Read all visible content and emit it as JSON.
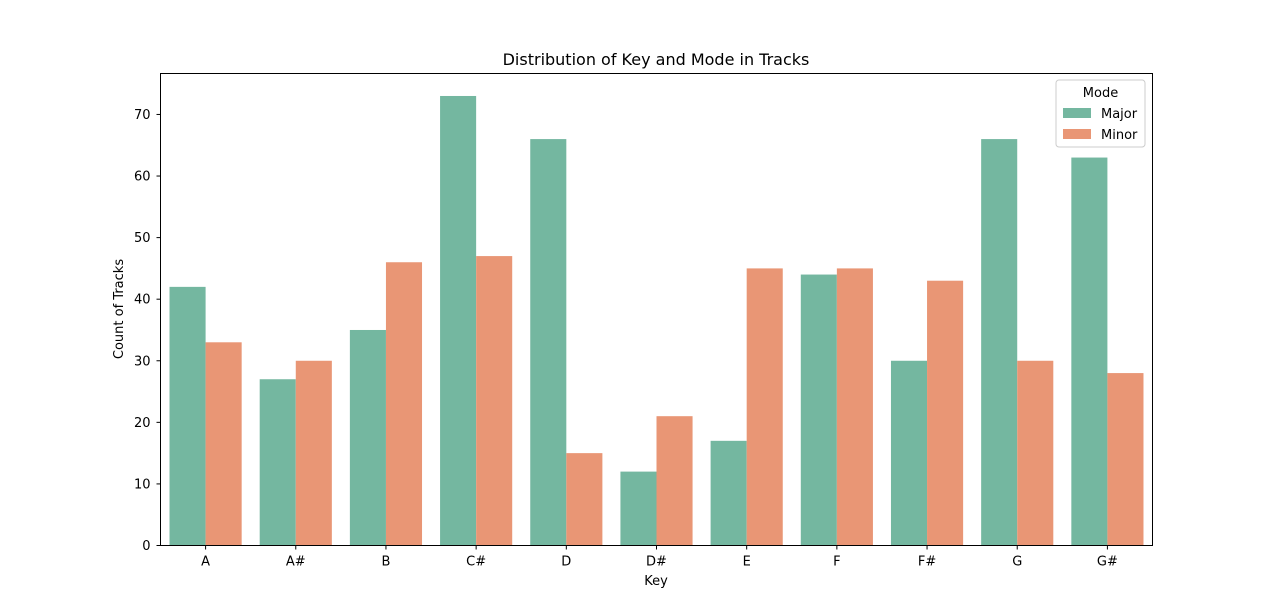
{
  "chart_data": {
    "type": "bar",
    "title": "Distribution of Key and Mode in Tracks",
    "xlabel": "Key",
    "ylabel": "Count of Tracks",
    "categories": [
      "A",
      "A#",
      "B",
      "C#",
      "D",
      "D#",
      "E",
      "F",
      "F#",
      "G",
      "G#"
    ],
    "series": [
      {
        "name": "Major",
        "color": "#74b7a0",
        "values": [
          42,
          27,
          35,
          73,
          66,
          12,
          17,
          44,
          30,
          66,
          63
        ]
      },
      {
        "name": "Minor",
        "color": "#e99675",
        "values": [
          33,
          30,
          46,
          47,
          15,
          21,
          45,
          45,
          43,
          30,
          28
        ]
      }
    ],
    "ylim": [
      0,
      76.65
    ],
    "yticks": [
      0,
      10,
      20,
      30,
      40,
      50,
      60,
      70
    ],
    "grid": false,
    "legend": {
      "title": "Mode",
      "placement": "top-right"
    }
  }
}
